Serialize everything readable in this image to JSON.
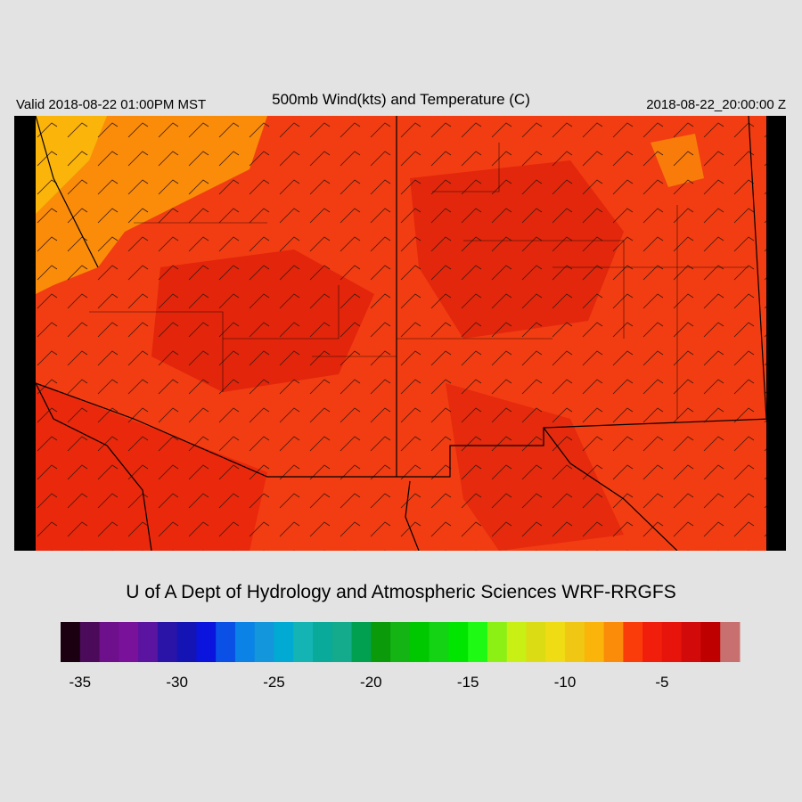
{
  "header": {
    "valid": "Valid 2018-08-22 01:00PM MST",
    "title": "500mb Wind(kts) and Temperature (C)",
    "time": "2018-08-22_20:00:00 Z"
  },
  "credit": "U of A Dept of Hydrology and Atmospheric Sciences WRF-RRGFS",
  "colorbar": {
    "range": [
      -36,
      -1
    ],
    "ticks": [
      -35,
      -30,
      -25,
      -20,
      -15,
      -10,
      -5
    ],
    "colors": [
      "#1a0010",
      "#4b0a5a",
      "#6e0f8c",
      "#7a119a",
      "#5a14a0",
      "#2a14a8",
      "#1414b4",
      "#0a14dc",
      "#0a50e6",
      "#0a82e6",
      "#1496dc",
      "#00aad2",
      "#14b4b4",
      "#0aaa9a",
      "#14aa8c",
      "#00a050",
      "#0a9a0a",
      "#14b414",
      "#00c800",
      "#14d214",
      "#00e600",
      "#1efa14",
      "#8cf014",
      "#c8f014",
      "#dcdc14",
      "#f0dc14",
      "#f0c814",
      "#fab40a",
      "#fa8c0a",
      "#fa3c0a",
      "#f01e0a",
      "#e6140a",
      "#d20a0a",
      "#be0000",
      "#c87070"
    ]
  }
}
